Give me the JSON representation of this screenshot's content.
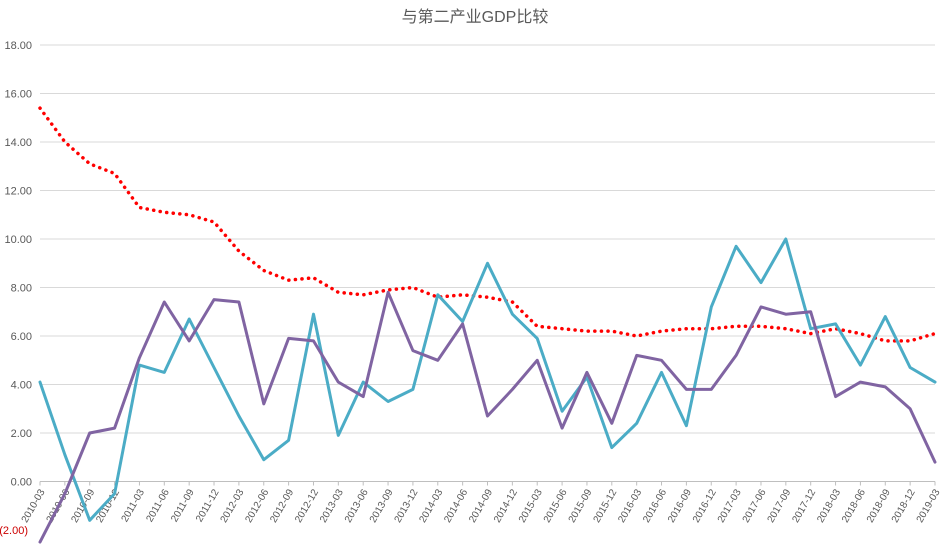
{
  "chart_data": {
    "type": "line",
    "title": "与第二产业GDP比较",
    "ylim": [
      -2,
      18
    ],
    "yticks": [
      -2,
      0,
      2,
      4,
      6,
      8,
      10,
      12,
      14,
      16,
      18
    ],
    "ytick_labels": [
      "(2.00)",
      "0.00",
      "2.00",
      "4.00",
      "6.00",
      "8.00",
      "10.00",
      "12.00",
      "14.00",
      "16.00",
      "18.00"
    ],
    "grid": true,
    "legend": "none",
    "categories": [
      "2010-03",
      "2010-06",
      "2010-09",
      "2010-12",
      "2011-03",
      "2011-06",
      "2011-09",
      "2011-12",
      "2012-03",
      "2012-06",
      "2012-09",
      "2012-12",
      "2013-03",
      "2013-06",
      "2013-09",
      "2013-12",
      "2014-03",
      "2014-06",
      "2014-09",
      "2014-12",
      "2015-03",
      "2015-06",
      "2015-09",
      "2015-12",
      "2016-03",
      "2016-06",
      "2016-09",
      "2016-12",
      "2017-03",
      "2017-06",
      "2017-09",
      "2017-12",
      "2018-03",
      "2018-06",
      "2018-09",
      "2018-12",
      "2019-03"
    ],
    "series": [
      {
        "color": "#ff0000",
        "style": "dotted",
        "values": [
          15.4,
          14.0,
          13.1,
          12.7,
          11.3,
          11.1,
          11.0,
          10.7,
          9.5,
          8.7,
          8.3,
          8.4,
          7.8,
          7.7,
          7.9,
          8.0,
          7.6,
          7.7,
          7.6,
          7.4,
          6.4,
          6.3,
          6.2,
          6.2,
          6.0,
          6.2,
          6.3,
          6.3,
          6.4,
          6.4,
          6.3,
          6.1,
          6.3,
          6.1,
          5.8,
          5.8,
          6.1
        ]
      },
      {
        "color": "#4bacc6",
        "style": "solid",
        "values": [
          4.1,
          1.1,
          -1.6,
          -0.5,
          4.8,
          4.5,
          6.7,
          4.7,
          2.7,
          0.9,
          1.7,
          6.9,
          1.9,
          4.1,
          3.3,
          3.8,
          7.7,
          6.6,
          9.0,
          6.9,
          5.9,
          2.9,
          4.3,
          1.4,
          2.4,
          4.5,
          2.3,
          7.2,
          9.7,
          8.2,
          10.0,
          6.3,
          6.5,
          4.8,
          6.8,
          4.7,
          4.1
        ]
      },
      {
        "color": "#8064a2",
        "style": "solid",
        "values": [
          -2.5,
          -0.5,
          2.0,
          2.2,
          5.1,
          7.4,
          5.8,
          7.5,
          7.4,
          3.2,
          5.9,
          5.8,
          4.1,
          3.5,
          7.8,
          5.4,
          5.0,
          6.5,
          2.7,
          3.8,
          5.0,
          2.2,
          4.5,
          2.4,
          5.2,
          5.0,
          3.8,
          3.8,
          5.2,
          7.2,
          6.9,
          7.0,
          3.5,
          4.1,
          3.9,
          3.0,
          0.8
        ]
      }
    ]
  }
}
